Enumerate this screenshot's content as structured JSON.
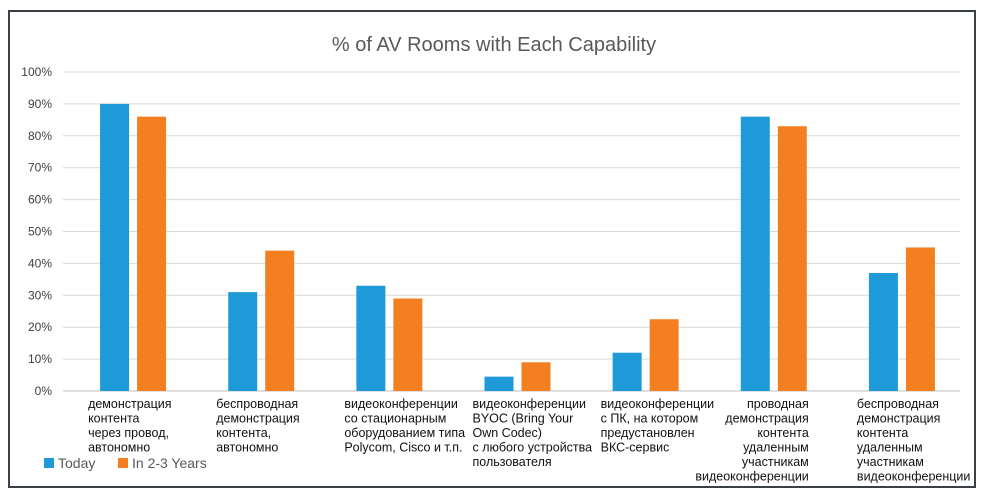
{
  "chart_data": {
    "type": "bar",
    "title": "% of AV Rooms with Each Capability",
    "xlabel": "",
    "ylabel": "",
    "ylim": [
      0,
      100
    ],
    "yticks": [
      "0%",
      "10%",
      "20%",
      "30%",
      "40%",
      "50%",
      "60%",
      "70%",
      "80%",
      "90%",
      "100%"
    ],
    "grid": true,
    "legend_position": "bottom-left",
    "categories": [
      "демонстрация контента через провод, автономно",
      "беспроводная демонстрация контента, автономно",
      "видеоконференции со стационарным оборудованием типа Polycom, Cisco и т.п.",
      "видеоконференции BYOC (Bring Your Own Codec) с любого устройства пользователя",
      "видеоконференции с ПК, на котором предустановлен ВКС-сервис",
      "проводная демонстрация контента удаленным участникам видеоконференции",
      "беспроводная демонстрация контента удаленным участникам видеоконференции"
    ],
    "category_lines": [
      [
        "демонстрация",
        "контента",
        "через провод,",
        "автономно"
      ],
      [
        "беспроводная",
        "демонстрация",
        "контента,",
        "автономно"
      ],
      [
        "видеоконференции",
        "со стационарным",
        "оборудованием типа",
        "Polycom, Cisco и т.п."
      ],
      [
        "видеоконференции",
        "BYOC (Bring Your",
        "Own Codec)",
        "с любого устройства",
        "пользователя"
      ],
      [
        "видеоконференции",
        "с ПК, на котором",
        "предустановлен",
        "ВКС-сервис"
      ],
      [
        "проводная",
        "демонстрация",
        "контента",
        "удаленным",
        "участникам",
        "видеоконференции"
      ],
      [
        "беспроводная",
        "демонстрация",
        "контента",
        "удаленным",
        "участникам",
        "видеоконференции"
      ]
    ],
    "category_align": [
      "start",
      "start",
      "start",
      "start",
      "start",
      "end",
      "start"
    ],
    "series": [
      {
        "name": "Today",
        "color": "#1f9ad8",
        "values": [
          90,
          31,
          33,
          4.5,
          12,
          86,
          37
        ]
      },
      {
        "name": "In 2-3 Years",
        "color": "#f47f20",
        "values": [
          86,
          44,
          29,
          9,
          22.5,
          83,
          45
        ]
      }
    ]
  }
}
